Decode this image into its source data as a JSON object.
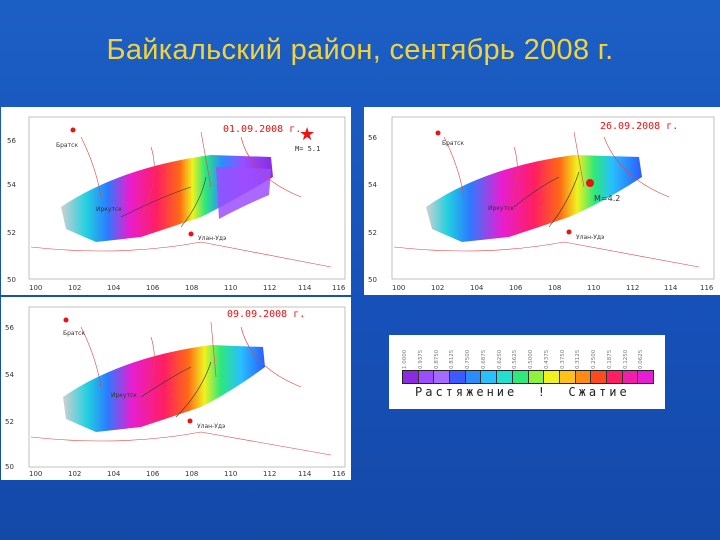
{
  "slide": {
    "title": "Байкальский район, сентябрь 2008 г."
  },
  "maps": [
    {
      "date": "01.09.2008 г.",
      "magnitude_label": "M= 5.1",
      "x_ticks": [
        "100",
        "102",
        "104",
        "106",
        "108",
        "110",
        "112",
        "114",
        "116"
      ],
      "y_ticks": [
        "56",
        "54",
        "52",
        "50"
      ]
    },
    {
      "date": "26.09.2008 г.",
      "magnitude_label": "M=4.2",
      "x_ticks": [
        "100",
        "102",
        "104",
        "106",
        "108",
        "110",
        "112",
        "114",
        "116"
      ],
      "y_ticks": [
        "56",
        "54",
        "52",
        "50"
      ]
    },
    {
      "date": "09.09.2008 г.",
      "x_ticks": [
        "100",
        "102",
        "104",
        "106",
        "108",
        "110",
        "112",
        "114",
        "116"
      ],
      "y_ticks": [
        "56",
        "54",
        "52",
        "50"
      ]
    }
  ],
  "places": {
    "bratsk": "Братск",
    "irkutsk": "Иркутск",
    "ulan_ude": "Улан-Удэ"
  },
  "legend": {
    "ticks": [
      "1.0000",
      "0.9375",
      "0.8750",
      "0.8125",
      "0.7500",
      "0.6875",
      "0.6250",
      "0.5625",
      "0.5000",
      "0.4375",
      "0.3750",
      "0.3125",
      "0.2500",
      "0.1875",
      "0.1250",
      "0.0625"
    ],
    "caption": "Растяжение  !  Сжатие",
    "colors": [
      "#8a2be2",
      "#9b4dff",
      "#a36bff",
      "#3b5bff",
      "#2b8cff",
      "#28c0ff",
      "#22e0d0",
      "#2ee87a",
      "#8ef23a",
      "#f0f21e",
      "#ffc21a",
      "#ff8a16",
      "#ff4a1e",
      "#ff1e64",
      "#f01ea8",
      "#e61ed2"
    ]
  }
}
